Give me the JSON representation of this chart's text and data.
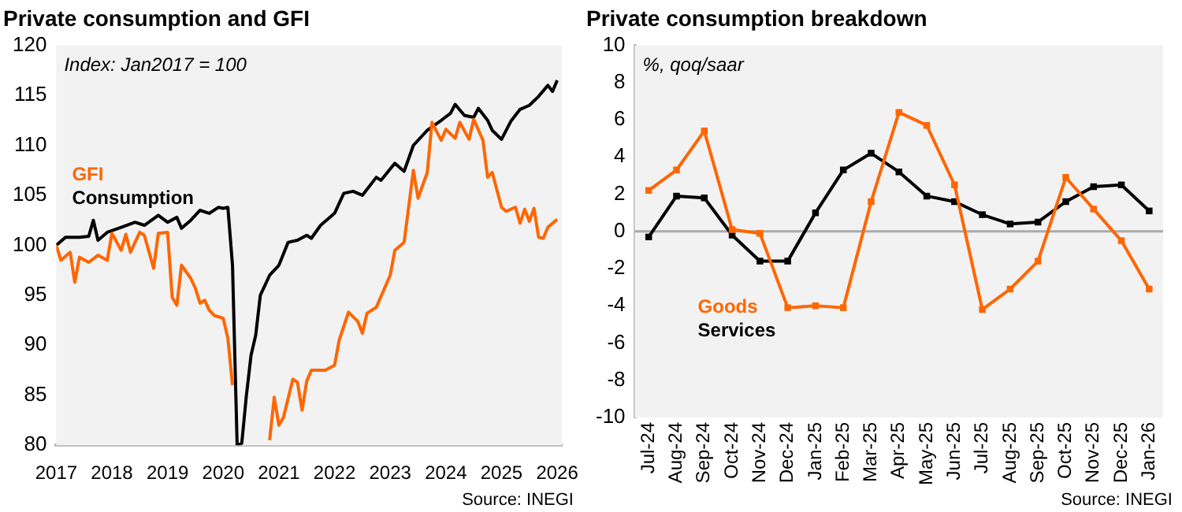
{
  "chart_data": [
    {
      "type": "line",
      "title": "Private consumption and GFI",
      "annotations": [
        "Index: Jan2017 = 100",
        "Source: INEGI"
      ],
      "legend": "left",
      "grid": false,
      "xlim": [
        "2017-01",
        "2026-02"
      ],
      "xticks": [
        "2017",
        "2018",
        "2019",
        "2020",
        "2021",
        "2022",
        "2023",
        "2024",
        "2025",
        "2026"
      ],
      "ylim": [
        80,
        120
      ],
      "yticks": [
        80,
        85,
        90,
        95,
        100,
        105,
        110,
        115,
        120
      ],
      "series": [
        {
          "name": "GFI",
          "color": "#ff6600",
          "x": [
            "2017-01",
            "2017-02",
            "2017-04",
            "2017-05",
            "2017-06",
            "2017-08",
            "2017-10",
            "2017-12",
            "2018-01",
            "2018-03",
            "2018-04",
            "2018-05",
            "2018-07",
            "2018-08",
            "2018-10",
            "2018-11",
            "2019-01",
            "2019-02",
            "2019-03",
            "2019-04",
            "2019-06",
            "2019-07",
            "2019-08",
            "2019-09",
            "2019-10",
            "2019-11",
            "2020-01",
            "2020-02",
            "2020-03",
            "2020-06",
            "2020-11",
            "2020-12",
            "2021-01",
            "2021-02",
            "2021-04",
            "2021-05",
            "2021-06",
            "2021-07",
            "2021-08",
            "2021-11",
            "2022-01",
            "2022-02",
            "2022-04",
            "2022-06",
            "2022-07",
            "2022-08",
            "2022-10",
            "2023-01",
            "2023-02",
            "2023-04",
            "2023-06",
            "2023-07",
            "2023-09",
            "2023-10",
            "2023-12",
            "2024-01",
            "2024-03",
            "2024-04",
            "2024-06",
            "2024-07",
            "2024-09",
            "2024-10",
            "2024-11",
            "2025-01",
            "2025-02",
            "2025-04",
            "2025-05",
            "2025-06",
            "2025-07",
            "2025-08",
            "2025-09",
            "2025-10",
            "2025-11",
            "2026-01"
          ],
          "values": [
            100.0,
            98.5,
            99.3,
            96.3,
            98.8,
            98.3,
            99.0,
            98.5,
            101.2,
            99.5,
            101.1,
            99.3,
            101.3,
            101.0,
            97.7,
            101.2,
            101.3,
            94.8,
            94.0,
            98.0,
            96.7,
            95.7,
            94.2,
            94.5,
            93.5,
            93.0,
            92.7,
            90.7,
            86.0,
            null,
            80.5,
            84.8,
            82.0,
            82.8,
            86.6,
            86.3,
            83.5,
            86.4,
            87.5,
            87.5,
            88.0,
            90.5,
            93.3,
            92.4,
            91.2,
            93.2,
            93.8,
            97.0,
            99.5,
            100.3,
            107.5,
            104.7,
            107.3,
            112.3,
            110.5,
            111.6,
            110.7,
            112.3,
            110.6,
            112.6,
            110.5,
            106.8,
            107.3,
            103.8,
            103.4,
            103.8,
            102.2,
            103.6,
            102.4,
            103.7,
            100.8,
            100.7,
            101.8,
            102.6
          ]
        },
        {
          "name": "Consumption",
          "color": "#000000",
          "x": [
            "2017-01",
            "2017-03",
            "2017-06",
            "2017-08",
            "2017-09",
            "2017-10",
            "2017-12",
            "2018-03",
            "2018-06",
            "2018-08",
            "2018-11",
            "2019-01",
            "2019-03",
            "2019-04",
            "2019-06",
            "2019-08",
            "2019-10",
            "2019-12",
            "2020-01",
            "2020-02",
            "2020-03",
            "2020-04",
            "2020-05",
            "2020-06",
            "2020-07",
            "2020-08",
            "2020-09",
            "2020-11",
            "2021-01",
            "2021-03",
            "2021-05",
            "2021-07",
            "2021-08",
            "2021-10",
            "2022-01",
            "2022-03",
            "2022-05",
            "2022-07",
            "2022-10",
            "2022-11",
            "2023-02",
            "2023-04",
            "2023-06",
            "2023-09",
            "2023-12",
            "2024-02",
            "2024-03",
            "2024-05",
            "2024-07",
            "2024-08",
            "2024-10",
            "2024-11",
            "2025-01",
            "2025-03",
            "2025-05",
            "2025-07",
            "2025-09",
            "2025-11",
            "2025-12",
            "2026-01"
          ],
          "values": [
            100.0,
            100.8,
            100.8,
            100.9,
            102.5,
            100.5,
            101.3,
            101.8,
            102.3,
            102.0,
            103.0,
            102.3,
            102.8,
            101.7,
            102.5,
            103.5,
            103.2,
            103.8,
            103.7,
            103.8,
            98.0,
            80.0,
            80.2,
            85.0,
            89.0,
            91.0,
            95.0,
            97.0,
            98.0,
            100.3,
            100.5,
            101.0,
            100.7,
            102.0,
            103.2,
            105.2,
            105.4,
            105.0,
            106.8,
            106.5,
            108.2,
            107.4,
            110.0,
            111.5,
            112.5,
            113.2,
            114.1,
            113.0,
            112.8,
            113.7,
            112.5,
            111.5,
            110.6,
            112.4,
            113.6,
            114.0,
            114.9,
            116.0,
            115.4,
            116.5
          ]
        }
      ]
    },
    {
      "type": "line",
      "title": "Private consumption breakdown",
      "annotations": [
        "%, qoq/saar",
        "Source: INEGI"
      ],
      "legend": "bottom left",
      "grid": false,
      "marker": "square",
      "categories": [
        "Jul-24",
        "Aug-24",
        "Sep-24",
        "Oct-24",
        "Nov-24",
        "Dec-24",
        "Jan-25",
        "Feb-25",
        "Mar-25",
        "Apr-25",
        "May-25",
        "Jun-25",
        "Jul-25",
        "Aug-25",
        "Sep-25",
        "Oct-25",
        "Nov-25",
        "Dec-25",
        "Jan-26"
      ],
      "ylim": [
        -10,
        10
      ],
      "yticks": [
        -10,
        -8,
        -6,
        -4,
        -2,
        0,
        2,
        4,
        6,
        8,
        10
      ],
      "ref_lines": [
        {
          "axis": "y",
          "value": 0,
          "color": "#aaaaaa"
        }
      ],
      "series": [
        {
          "name": "Goods",
          "color": "#ff6600",
          "values": [
            2.2,
            3.3,
            5.4,
            0.1,
            -0.1,
            -4.1,
            -4.0,
            -4.1,
            1.6,
            6.4,
            5.7,
            2.5,
            -4.2,
            -3.1,
            -1.6,
            2.9,
            1.2,
            -0.5,
            -3.1
          ]
        },
        {
          "name": "Services",
          "color": "#000000",
          "values": [
            -0.3,
            1.9,
            1.8,
            -0.2,
            -1.6,
            -1.6,
            1.0,
            3.3,
            4.2,
            3.2,
            1.9,
            1.6,
            0.9,
            0.4,
            0.5,
            1.6,
            2.4,
            2.5,
            1.1
          ]
        }
      ]
    }
  ]
}
